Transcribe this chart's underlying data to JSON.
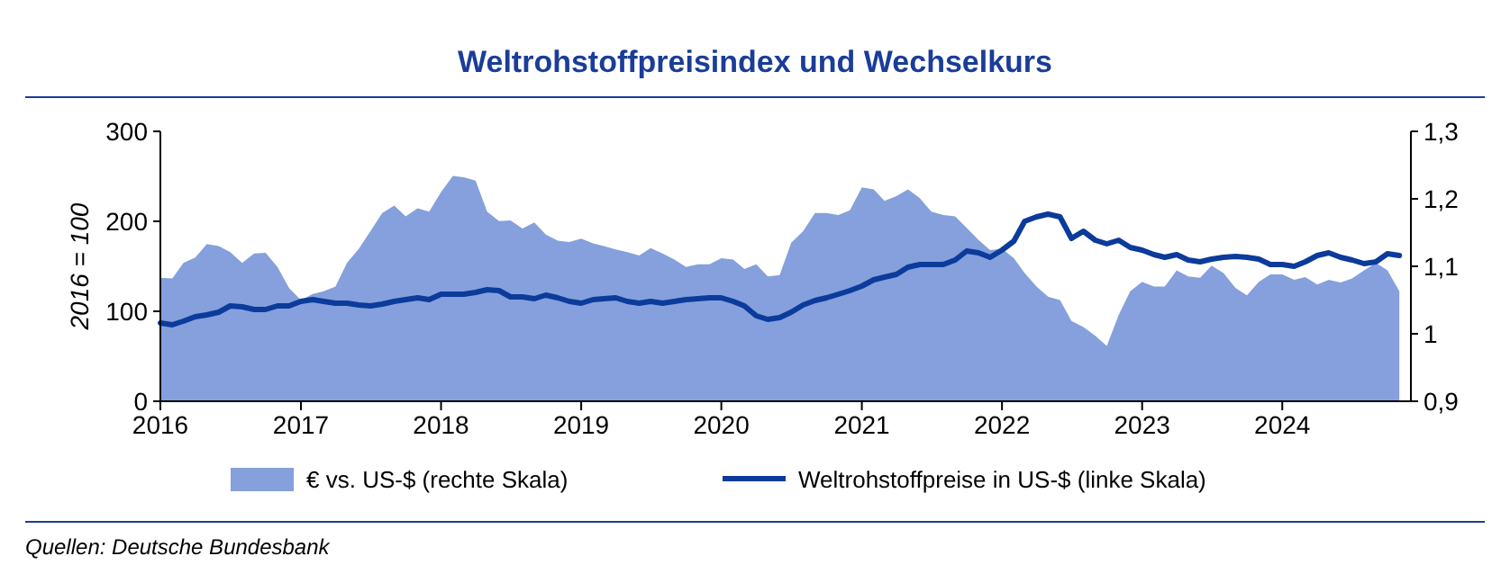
{
  "chart_data": {
    "type": "line",
    "title": "Weltrohstoffpreisindex und Wechselkurs",
    "ylabel": "2016 = 100",
    "annotations": [
      "Quellen: Deutsche Bundesbank"
    ],
    "x": [
      "2016-01",
      "2016-02",
      "2016-03",
      "2016-04",
      "2016-05",
      "2016-06",
      "2016-07",
      "2016-08",
      "2016-09",
      "2016-10",
      "2016-11",
      "2016-12",
      "2017-01",
      "2017-02",
      "2017-03",
      "2017-04",
      "2017-05",
      "2017-06",
      "2017-07",
      "2017-08",
      "2017-09",
      "2017-10",
      "2017-11",
      "2017-12",
      "2018-01",
      "2018-02",
      "2018-03",
      "2018-04",
      "2018-05",
      "2018-06",
      "2018-07",
      "2018-08",
      "2018-09",
      "2018-10",
      "2018-11",
      "2018-12",
      "2019-01",
      "2019-02",
      "2019-03",
      "2019-04",
      "2019-05",
      "2019-06",
      "2019-07",
      "2019-08",
      "2019-09",
      "2019-10",
      "2019-11",
      "2019-12",
      "2020-01",
      "2020-02",
      "2020-03",
      "2020-04",
      "2020-05",
      "2020-06",
      "2020-07",
      "2020-08",
      "2020-09",
      "2020-10",
      "2020-11",
      "2020-12",
      "2021-01",
      "2021-02",
      "2021-03",
      "2021-04",
      "2021-05",
      "2021-06",
      "2021-07",
      "2021-08",
      "2021-09",
      "2021-10",
      "2021-11",
      "2021-12",
      "2022-01",
      "2022-02",
      "2022-03",
      "2022-04",
      "2022-05",
      "2022-06",
      "2022-07",
      "2022-08",
      "2022-09",
      "2022-10",
      "2022-11",
      "2022-12",
      "2023-01",
      "2023-02",
      "2023-03",
      "2023-04",
      "2023-05",
      "2023-06",
      "2023-07",
      "2023-08",
      "2023-09",
      "2023-10",
      "2023-11",
      "2023-12",
      "2024-01",
      "2024-02",
      "2024-03",
      "2024-04",
      "2024-05",
      "2024-06",
      "2024-07",
      "2024-08",
      "2024-09",
      "2024-10",
      "2024-11"
    ],
    "series": [
      {
        "name": "€ vs. US-$ (rechte Skala)",
        "type": "area",
        "axis": "y2",
        "color": "#85a0dc",
        "values": [
          1.083,
          1.082,
          1.105,
          1.113,
          1.133,
          1.13,
          1.121,
          1.105,
          1.119,
          1.12,
          1.099,
          1.068,
          1.05,
          1.059,
          1.063,
          1.07,
          1.105,
          1.126,
          1.152,
          1.179,
          1.19,
          1.174,
          1.186,
          1.181,
          1.21,
          1.234,
          1.232,
          1.227,
          1.181,
          1.167,
          1.168,
          1.156,
          1.165,
          1.147,
          1.138,
          1.136,
          1.141,
          1.134,
          1.13,
          1.125,
          1.121,
          1.116,
          1.127,
          1.119,
          1.11,
          1.099,
          1.103,
          1.103,
          1.112,
          1.11,
          1.096,
          1.103,
          1.085,
          1.087,
          1.135,
          1.152,
          1.179,
          1.179,
          1.176,
          1.183,
          1.217,
          1.214,
          1.197,
          1.204,
          1.214,
          1.201,
          1.181,
          1.176,
          1.174,
          1.157,
          1.139,
          1.124,
          1.126,
          1.112,
          1.09,
          1.07,
          1.055,
          1.05,
          1.019,
          1.01,
          0.997,
          0.982,
          1.028,
          1.063,
          1.077,
          1.07,
          1.07,
          1.094,
          1.085,
          1.083,
          1.101,
          1.09,
          1.068,
          1.057,
          1.077,
          1.088,
          1.088,
          1.08,
          1.084,
          1.073,
          1.08,
          1.076,
          1.082,
          1.094,
          1.105,
          1.094,
          1.063
        ]
      },
      {
        "name": "Weltrohstoffpreise in US-$ (linke Skala)",
        "color": "#0b3b9b",
        "values": [
          87,
          85,
          89,
          94,
          96,
          99,
          106,
          105,
          102,
          102,
          106,
          106,
          111,
          113,
          111,
          109,
          109,
          107,
          106,
          108,
          111,
          113,
          115,
          113,
          119,
          119,
          119,
          121,
          124,
          123,
          116,
          116,
          114,
          118,
          115,
          111,
          109,
          113,
          114,
          115,
          111,
          109,
          111,
          109,
          111,
          113,
          114,
          115,
          115,
          111,
          106,
          95,
          91,
          93,
          99,
          107,
          112,
          115,
          119,
          123,
          128,
          135,
          138,
          141,
          149,
          152,
          152,
          152,
          157,
          167,
          165,
          160,
          168,
          178,
          200,
          205,
          208,
          205,
          181,
          189,
          179,
          175,
          179,
          171,
          168,
          163,
          160,
          163,
          157,
          155,
          158,
          160,
          161,
          160,
          158,
          152,
          152,
          150,
          155,
          162,
          165,
          160,
          157,
          153,
          155,
          164,
          162
        ]
      }
    ],
    "xlim": [
      "2016-01",
      "2024-12"
    ],
    "xticks": [
      {
        "value": "2016-01",
        "label": "2016"
      },
      {
        "value": "2017-01",
        "label": "2017"
      },
      {
        "value": "2018-01",
        "label": "2018"
      },
      {
        "value": "2019-01",
        "label": "2019"
      },
      {
        "value": "2020-01",
        "label": "2020"
      },
      {
        "value": "2021-01",
        "label": "2021"
      },
      {
        "value": "2022-01",
        "label": "2022"
      },
      {
        "value": "2023-01",
        "label": "2023"
      },
      {
        "value": "2024-01",
        "label": "2024"
      }
    ],
    "ylim": [
      0,
      300
    ],
    "yticks": [
      0,
      100,
      200,
      300
    ],
    "y2lim": [
      0.9,
      1.3
    ],
    "y2ticks": [
      {
        "value": 0.9,
        "label": "0,9"
      },
      1,
      {
        "value": 1.1,
        "label": "1,1"
      },
      {
        "value": 1.2,
        "label": "1,2"
      },
      {
        "value": 1.3,
        "label": "1,3"
      }
    ],
    "legend": "bottom",
    "grid": false,
    "marker": "none",
    "line_style": "solid"
  }
}
